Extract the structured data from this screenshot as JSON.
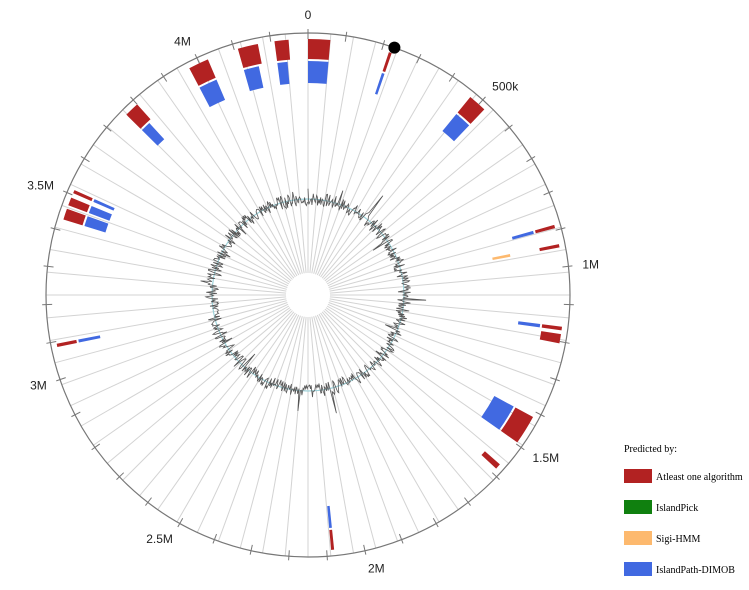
{
  "genome_plot": {
    "genome_size": 4300000,
    "tick_labels": [
      {
        "label": "0",
        "pos": 0
      },
      {
        "label": "500k",
        "pos": 500000
      },
      {
        "label": "1M",
        "pos": 1000000
      },
      {
        "label": "1.5M",
        "pos": 1500000
      },
      {
        "label": "2M",
        "pos": 2000000
      },
      {
        "label": "2.5M",
        "pos": 2500000
      },
      {
        "label": "3M",
        "pos": 3000000
      },
      {
        "label": "3.5M",
        "pos": 3500000
      },
      {
        "label": "4M",
        "pos": 4000000
      }
    ],
    "marker_pos": 230000,
    "islands": [
      {
        "pos": 0,
        "track": "atleast",
        "width": 60000
      },
      {
        "pos": 0,
        "track": "islandpath",
        "width": 60000
      },
      {
        "pos": 220000,
        "track": "atleast",
        "width": 8000
      },
      {
        "pos": 220000,
        "track": "islandpath",
        "width": 8000
      },
      {
        "pos": 470000,
        "track": "atleast",
        "width": 50000
      },
      {
        "pos": 470000,
        "track": "islandpath",
        "width": 50000
      },
      {
        "pos": 885000,
        "track": "atleast",
        "width": 9000
      },
      {
        "pos": 885000,
        "track": "islandpath",
        "width": 9000
      },
      {
        "pos": 938000,
        "track": "atleast",
        "width": 9000
      },
      {
        "pos": 938000,
        "track": "sigi",
        "width": 9000
      },
      {
        "pos": 1160000,
        "track": "atleast",
        "width": 10000
      },
      {
        "pos": 1160000,
        "track": "islandpath",
        "width": 10000
      },
      {
        "pos": 1180000,
        "track": "atleast",
        "width": 25000
      },
      {
        "pos": 1415000,
        "track": "atleast",
        "width": 80000
      },
      {
        "pos": 1415000,
        "track": "islandpath",
        "width": 80000
      },
      {
        "pos": 1570000,
        "track": "atleast",
        "width": 15000
      },
      {
        "pos": 2080000,
        "track": "atleast",
        "width": 8000
      },
      {
        "pos": 2080000,
        "track": "islandpath",
        "width": 8000
      },
      {
        "pos": 3085000,
        "track": "atleast",
        "width": 9000
      },
      {
        "pos": 3085000,
        "track": "islandpath",
        "width": 9000
      },
      {
        "pos": 3430000,
        "track": "atleast",
        "width": 30000
      },
      {
        "pos": 3430000,
        "track": "islandpath",
        "width": 30000
      },
      {
        "pos": 3470000,
        "track": "atleast",
        "width": 22000
      },
      {
        "pos": 3470000,
        "track": "islandpath",
        "width": 22000
      },
      {
        "pos": 3505000,
        "track": "atleast",
        "width": 9000
      },
      {
        "pos": 3505000,
        "track": "islandpath",
        "width": 9000
      },
      {
        "pos": 3760000,
        "track": "atleast",
        "width": 40000
      },
      {
        "pos": 3760000,
        "track": "islandpath",
        "width": 30000
      },
      {
        "pos": 3970000,
        "track": "atleast",
        "width": 55000
      },
      {
        "pos": 3970000,
        "track": "islandpath",
        "width": 55000
      },
      {
        "pos": 4110000,
        "track": "atleast",
        "width": 55000
      },
      {
        "pos": 4110000,
        "track": "islandpath",
        "width": 45000
      },
      {
        "pos": 4210000,
        "track": "atleast",
        "width": 38000
      },
      {
        "pos": 4210000,
        "track": "islandpath",
        "width": 30000
      }
    ]
  },
  "legend": {
    "title": "Predicted by:",
    "items": [
      {
        "key": "atleast",
        "label": "Atleast one algorithm",
        "color": "#b22222"
      },
      {
        "key": "islandpick",
        "label": "IslandPick",
        "color": "#10800f"
      },
      {
        "key": "sigi",
        "label": "Sigi-HMM",
        "color": "#fdb96e"
      },
      {
        "key": "islandpath",
        "label": "IslandPath-DIMOB",
        "color": "#4169e1"
      }
    ]
  },
  "colors": {
    "outer_circle": "#777777",
    "radial_lines": "#d3d3d3",
    "gc_line": "#555555",
    "gc_baseline": "#9ed2da",
    "marker": "#000000"
  }
}
